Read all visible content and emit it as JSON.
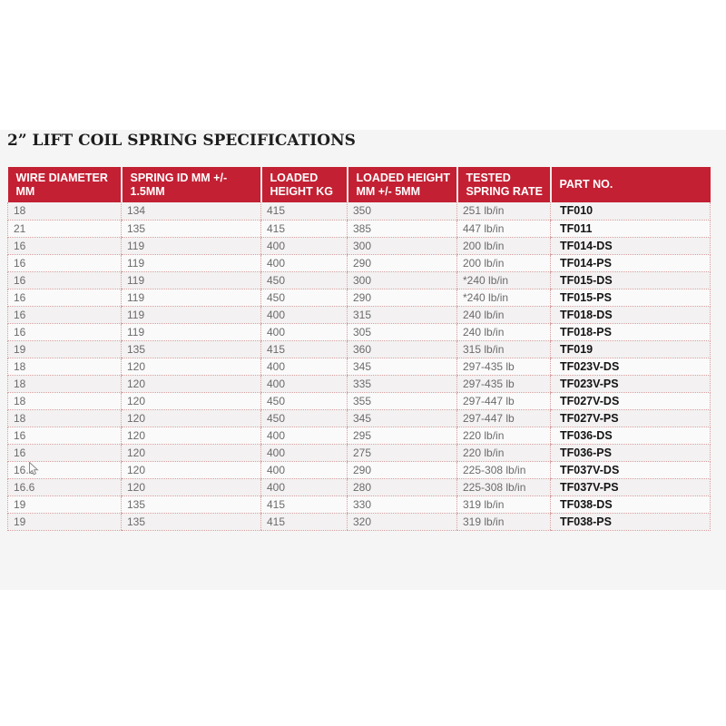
{
  "title": "2” LIFT COIL SPRING SPECIFICATIONS",
  "table": {
    "headers": [
      {
        "id": "wire-diameter-mm",
        "lines": [
          "WIRE DIAMETER",
          "MM"
        ]
      },
      {
        "id": "spring-id-mm",
        "lines": [
          "SPRING ID MM +/-",
          "1.5MM"
        ]
      },
      {
        "id": "loaded-height-kg",
        "lines": [
          "LOADED",
          "HEIGHT KG"
        ]
      },
      {
        "id": "loaded-height-mm",
        "lines": [
          "LOADED HEIGHT",
          "MM +/- 5MM"
        ]
      },
      {
        "id": "tested-spring-rate",
        "lines": [
          "TESTED",
          "SPRING RATE"
        ]
      },
      {
        "id": "part-no",
        "lines": [
          "PART NO."
        ]
      }
    ],
    "rows": [
      [
        "18",
        "134",
        "415",
        "350",
        "251 lb/in",
        "TF010"
      ],
      [
        "21",
        "135",
        "415",
        "385",
        "447 lb/in",
        "TF011"
      ],
      [
        "16",
        "119",
        "400",
        "300",
        "200 lb/in",
        "TF014-DS"
      ],
      [
        "16",
        "119",
        "400",
        "290",
        "200 lb/in",
        "TF014-PS"
      ],
      [
        "16",
        "119",
        "450",
        "300",
        "*240 lb/in",
        "TF015-DS"
      ],
      [
        "16",
        "119",
        "450",
        "290",
        "*240 lb/in",
        "TF015-PS"
      ],
      [
        "16",
        "119",
        "400",
        "315",
        "240 lb/in",
        "TF018-DS"
      ],
      [
        "16",
        "119",
        "400",
        "305",
        "240 lb/in",
        "TF018-PS"
      ],
      [
        "19",
        "135",
        "415",
        "360",
        "315 lb/in",
        "TF019"
      ],
      [
        "18",
        "120",
        "400",
        "345",
        "297-435 lb",
        "TF023V-DS"
      ],
      [
        "18",
        "120",
        "400",
        "335",
        "297-435 lb",
        "TF023V-PS"
      ],
      [
        "18",
        "120",
        "450",
        "355",
        "297-447 lb",
        "TF027V-DS"
      ],
      [
        "18",
        "120",
        "450",
        "345",
        "297-447 lb",
        "TF027V-PS"
      ],
      [
        "16",
        "120",
        "400",
        "295",
        "220 lb/in",
        "TF036-DS"
      ],
      [
        "16",
        "120",
        "400",
        "275",
        "220 lb/in",
        "TF036-PS"
      ],
      [
        "16.6",
        "120",
        "400",
        "290",
        "225-308 lb/in",
        "TF037V-DS"
      ],
      [
        "16.6",
        "120",
        "400",
        "280",
        "225-308 lb/in",
        "TF037V-PS"
      ],
      [
        "19",
        "135",
        "415",
        "330",
        "319 lb/in",
        "TF038-DS"
      ],
      [
        "19",
        "135",
        "415",
        "320",
        "319 lb/in",
        "TF038-PS"
      ]
    ]
  },
  "cursor": {
    "type": "arrow-pointer",
    "over": "wire diameter cell of row TF037V-DS"
  },
  "colors": {
    "header_bg": "#c32033",
    "header_text": "#ffffff",
    "body_text": "#6b6b6b",
    "part_no_text": "#141414",
    "grid_dotted": "#d6a0a0",
    "row_alt_a": "#f3f1f1",
    "row_alt_b": "#fbfafa",
    "band_bg": "#f6f5f5",
    "title_text": "#1d1d1d"
  }
}
